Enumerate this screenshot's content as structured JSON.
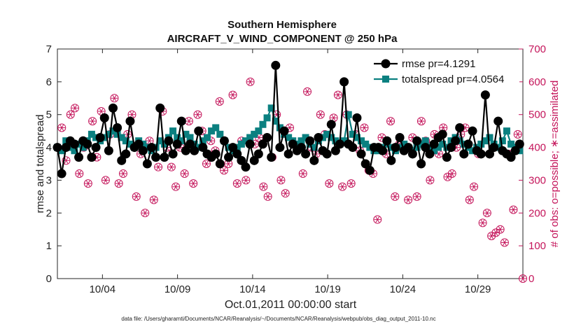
{
  "chart_data": {
    "type": "line",
    "title": "Southern Hemisphere",
    "subtitle": "AIRCRAFT_V_WIND_COMPONENT @ 250 hPa",
    "xlabel": "Oct.01,2011 00:00:00 start",
    "ylabel": "rmse and totalspread",
    "y2label": "# of obs: o=possible; ∗=assimilated",
    "footer": "data file: /Users/gharamti/Documents/NCAR/Reanalysis/~/Documents/NCAR/Reanalysis/webpub/obs_diag_output_2011-10.nc",
    "xlim": [
      1,
      32
    ],
    "ylim": [
      0,
      7
    ],
    "y2lim": [
      0,
      700
    ],
    "x_ticks": [
      4,
      9,
      14,
      19,
      24,
      29
    ],
    "x_tick_labels": [
      "10/04",
      "10/09",
      "10/14",
      "10/19",
      "10/24",
      "10/29"
    ],
    "y_ticks": [
      "0",
      "1",
      "2",
      "3",
      "4",
      "5",
      "6",
      "7"
    ],
    "y2_ticks": [
      "0",
      "100",
      "200",
      "300",
      "400",
      "500",
      "600",
      "700"
    ],
    "legend_location": "top-right",
    "colors": {
      "rmse": "#000000",
      "totalspread": "#0b8080",
      "obs": "#c4145a"
    },
    "series": [
      {
        "name": "rmse pr=4.1291",
        "marker": "circle",
        "values": [
          4.0,
          3.2,
          4.0,
          4.2,
          4.1,
          3.7,
          4.2,
          4.1,
          3.7,
          4.0,
          4.3,
          4.9,
          3.9,
          5.2,
          4.6,
          3.6,
          3.8,
          4.8,
          4.0,
          4.1,
          3.9,
          3.5,
          4.0,
          3.7,
          5.2,
          3.7,
          4.2,
          3.8,
          4.1,
          4.8,
          3.9,
          4.1,
          3.9,
          4.5,
          4.0,
          3.8,
          3.7,
          3.8,
          3.5,
          4.2,
          3.7,
          4.0,
          3.8,
          3.6,
          3.4,
          4.1,
          3.6,
          3.8,
          4.1,
          4.3,
          3.7,
          6.5,
          4.0,
          4.5,
          3.8,
          4.1,
          3.9,
          4.0,
          3.8,
          4.2,
          3.6,
          4.3,
          3.9,
          3.8,
          4.7,
          3.9,
          4.1,
          6.0,
          4.1,
          4.0,
          4.9,
          3.8,
          3.5,
          3.3,
          4.0,
          4.0,
          3.9,
          4.2,
          3.6,
          4.0,
          4.3,
          3.9,
          4.0,
          3.8,
          4.2,
          3.5,
          4.0,
          3.8,
          4.1,
          4.3,
          4.4,
          3.7,
          4.0,
          4.2,
          4.6,
          3.8,
          4.1,
          4.5,
          3.9,
          3.8,
          5.6,
          3.8,
          4.0,
          4.8,
          3.9,
          3.8,
          3.7,
          3.9,
          4.1
        ],
        "x_start": 1,
        "x_step": 0.285
      },
      {
        "name": "totalspread pr=4.0564",
        "marker": "square",
        "values": [
          4.0,
          3.9,
          4.2,
          4.0,
          3.9,
          4.1,
          4.0,
          4.2,
          4.4,
          4.3,
          4.2,
          4.3,
          4.4,
          4.5,
          4.4,
          4.3,
          4.2,
          4.1,
          4.0,
          4.2,
          4.1,
          4.0,
          3.9,
          4.0,
          4.2,
          4.1,
          4.3,
          4.5,
          4.3,
          4.2,
          4.4,
          4.3,
          4.1,
          4.0,
          4.2,
          4.3,
          4.5,
          4.6,
          4.4,
          4.2,
          4.0,
          3.9,
          4.0,
          4.1,
          4.2,
          4.3,
          4.4,
          4.5,
          4.7,
          4.9,
          5.2,
          4.8,
          4.6,
          4.4,
          4.3,
          4.2,
          4.1,
          4.2,
          4.3,
          4.1,
          4.0,
          4.2,
          4.3,
          4.4,
          4.3,
          4.2,
          4.1,
          4.2,
          5.0,
          4.4,
          4.3,
          4.2,
          4.1,
          4.0,
          3.9,
          3.9,
          4.0,
          4.1,
          4.0,
          3.9,
          4.0,
          4.1,
          4.0,
          3.9,
          4.0,
          4.1,
          4.2,
          4.0,
          3.9,
          4.0,
          4.1,
          4.0,
          4.2,
          4.3,
          4.2,
          4.1,
          4.0,
          3.9,
          4.0,
          4.1,
          4.2,
          4.3,
          4.1,
          4.0,
          4.2,
          4.5,
          4.1,
          4.0,
          3.9
        ],
        "x_start": 1,
        "x_step": 0.285
      },
      {
        "name": "# of obs possible",
        "marker": "circle-open",
        "axis": "right",
        "values": [
          400,
          460,
          360,
          500,
          520,
          320,
          400,
          290,
          480,
          370,
          510,
          300,
          440,
          550,
          290,
          320,
          440,
          500,
          250,
          380,
          200,
          420,
          240,
          340,
          510,
          400,
          340,
          280,
          400,
          320,
          480,
          290,
          500,
          450,
          350,
          420,
          390,
          540,
          330,
          350,
          560,
          290,
          420,
          300,
          600,
          410,
          430,
          280,
          250,
          370,
          500,
          300,
          260,
          460,
          410,
          400,
          320,
          570,
          400,
          380,
          500,
          440,
          290,
          490,
          560,
          280,
          500,
          290,
          440,
          390,
          460,
          330,
          320,
          180,
          430,
          380,
          480,
          250,
          410,
          400,
          240,
          430,
          250,
          480,
          420,
          300,
          440,
          380,
          460,
          310,
          320,
          400,
          440,
          460,
          240,
          280,
          380,
          170,
          200,
          130,
          140,
          150,
          110,
          380,
          210,
          440,
          400
        ],
        "x_start": 1,
        "x_step": 0.292
      },
      {
        "name": "# of obs assimilated",
        "marker": "star",
        "axis": "right",
        "values": [
          400,
          460,
          360,
          500,
          520,
          320,
          400,
          290,
          480,
          370,
          510,
          300,
          440,
          550,
          290,
          320,
          440,
          500,
          250,
          380,
          200,
          420,
          240,
          340,
          510,
          400,
          340,
          280,
          400,
          320,
          480,
          290,
          500,
          450,
          350,
          420,
          390,
          540,
          330,
          350,
          560,
          290,
          420,
          300,
          600,
          410,
          430,
          280,
          250,
          370,
          500,
          300,
          260,
          460,
          410,
          400,
          320,
          570,
          400,
          380,
          500,
          440,
          290,
          490,
          560,
          280,
          500,
          290,
          440,
          390,
          460,
          330,
          320,
          180,
          430,
          380,
          480,
          250,
          410,
          400,
          240,
          430,
          250,
          480,
          420,
          300,
          440,
          380,
          460,
          310,
          320,
          400,
          440,
          460,
          240,
          280,
          380,
          170,
          200,
          130,
          140,
          150,
          110,
          380,
          210,
          440,
          400
        ],
        "x_start": 1,
        "x_step": 0.292
      }
    ],
    "last_obs_value": 0
  }
}
